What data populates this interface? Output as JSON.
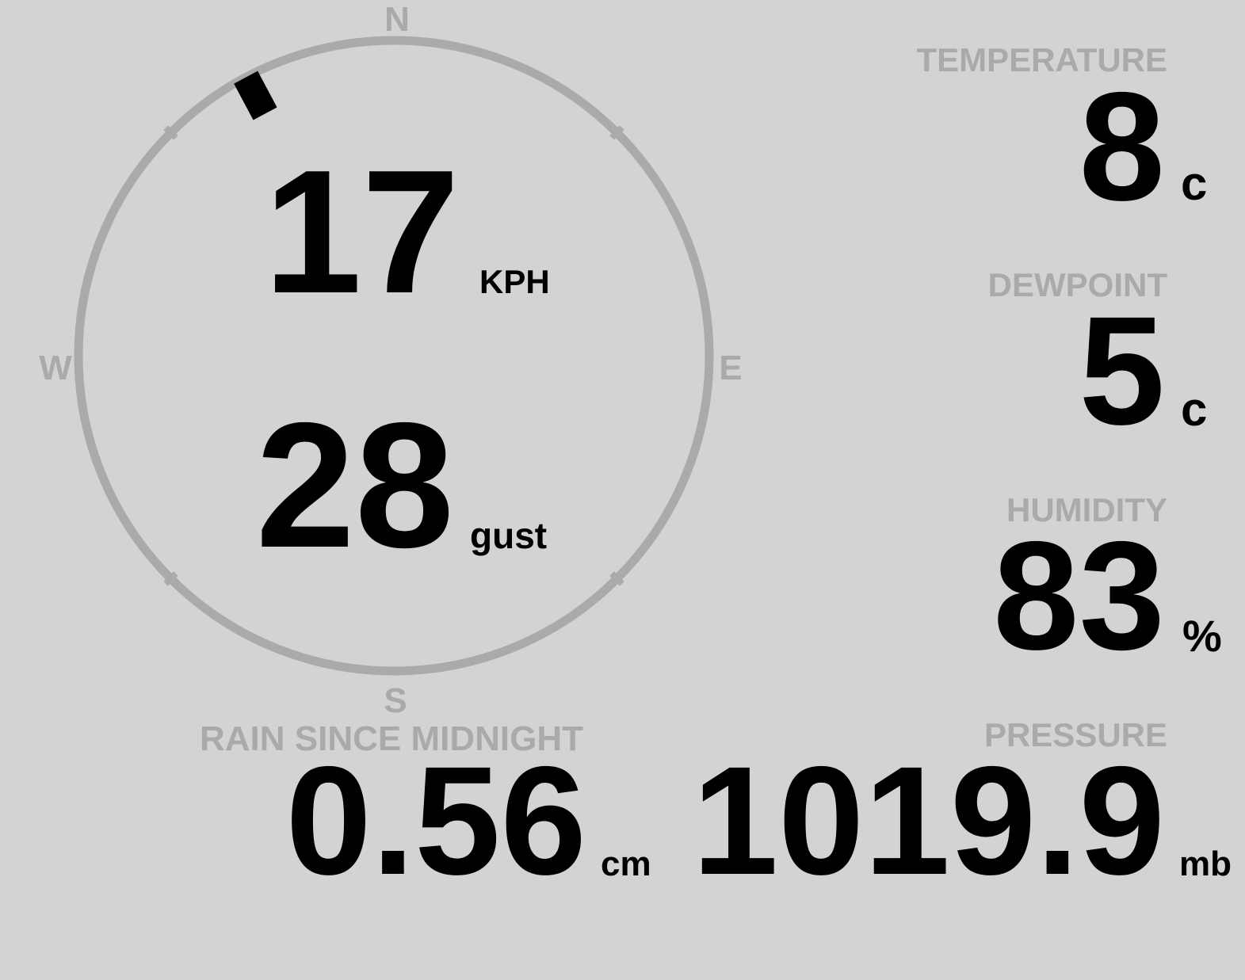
{
  "colors": {
    "background": "#d3d3d3",
    "label": "#aaaaaa",
    "value": "#000000",
    "ring": "#aaaaaa"
  },
  "wind": {
    "compass": {
      "north": "N",
      "east": "E",
      "south": "S",
      "west": "W"
    },
    "direction_deg": 332,
    "speed": "17",
    "speed_unit": "KPH",
    "gust": "28",
    "gust_label": "gust"
  },
  "temperature": {
    "label": "TEMPERATURE",
    "value": "8",
    "unit": "c"
  },
  "dewpoint": {
    "label": "DEWPOINT",
    "value": "5",
    "unit": "c"
  },
  "humidity": {
    "label": "HUMIDITY",
    "value": "83",
    "unit": "%"
  },
  "pressure": {
    "label": "PRESSURE",
    "value": "1019.9",
    "unit": "mb"
  },
  "rain": {
    "label": "RAIN SINCE MIDNIGHT",
    "value": "0.56",
    "unit": "cm"
  }
}
